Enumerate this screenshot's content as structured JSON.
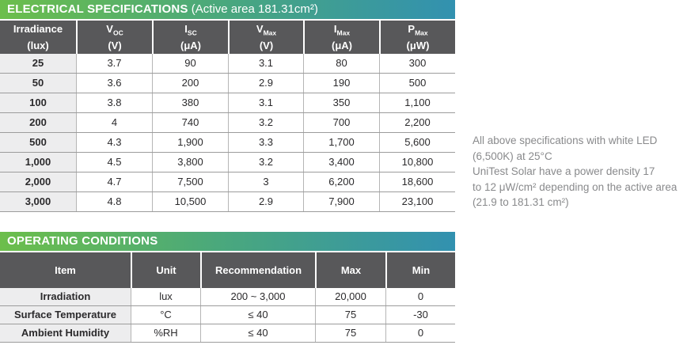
{
  "spec_table": {
    "title_bold": "ELECTRICAL SPECIFICATIONS",
    "title_note": " (Active area 181.31cm²)",
    "columns": [
      {
        "line1": "Irradiance",
        "sub": "",
        "line2": "(lux)"
      },
      {
        "line1": "V",
        "sub": "OC",
        "line2": "(V)"
      },
      {
        "line1": "I",
        "sub": "SC",
        "line2": "(μA)"
      },
      {
        "line1": "V",
        "sub": "Max",
        "line2": "(V)"
      },
      {
        "line1": "I",
        "sub": "Max",
        "line2": "(μA)"
      },
      {
        "line1": "P",
        "sub": "Max",
        "line2": "(μW)"
      }
    ],
    "rows": [
      [
        "25",
        "3.7",
        "90",
        "3.1",
        "80",
        "300"
      ],
      [
        "50",
        "3.6",
        "200",
        "2.9",
        "190",
        "500"
      ],
      [
        "100",
        "3.8",
        "380",
        "3.1",
        "350",
        "1,100"
      ],
      [
        "200",
        "4",
        "740",
        "3.2",
        "700",
        "2,200"
      ],
      [
        "500",
        "4.3",
        "1,900",
        "3.3",
        "1,700",
        "5,600"
      ],
      [
        "1,000",
        "4.5",
        "3,800",
        "3.2",
        "3,400",
        "10,800"
      ],
      [
        "2,000",
        "4.7",
        "7,500",
        "3",
        "6,200",
        "18,600"
      ],
      [
        "3,000",
        "4.8",
        "10,500",
        "2.9",
        "7,900",
        "23,100"
      ]
    ]
  },
  "notes": {
    "lines": [
      "All above specifications with white LED",
      "(6,500K) at 25°C",
      "UniTest Solar have a power density 17",
      "to 12 μW/cm² depending on the active area",
      "(21.9 to 181.31 cm²)"
    ]
  },
  "operating_table": {
    "title": "OPERATING CONDITIONS",
    "columns": [
      "Item",
      "Unit",
      "Recommendation",
      "Max",
      "Min"
    ],
    "rows": [
      [
        "Irradiation",
        "lux",
        "200 ~ 3,000",
        "20,000",
        "0"
      ],
      [
        "Surface Temperature",
        "°C",
        "≤ 40",
        "75",
        "-30"
      ],
      [
        "Ambient Humidity",
        "%RH",
        "≤ 40",
        "75",
        "0"
      ]
    ]
  },
  "colors": {
    "gradient_start": "#6cbe4b",
    "gradient_end": "#3291b0",
    "header_bg": "#58585a",
    "label_column_bg": "#ededee"
  }
}
